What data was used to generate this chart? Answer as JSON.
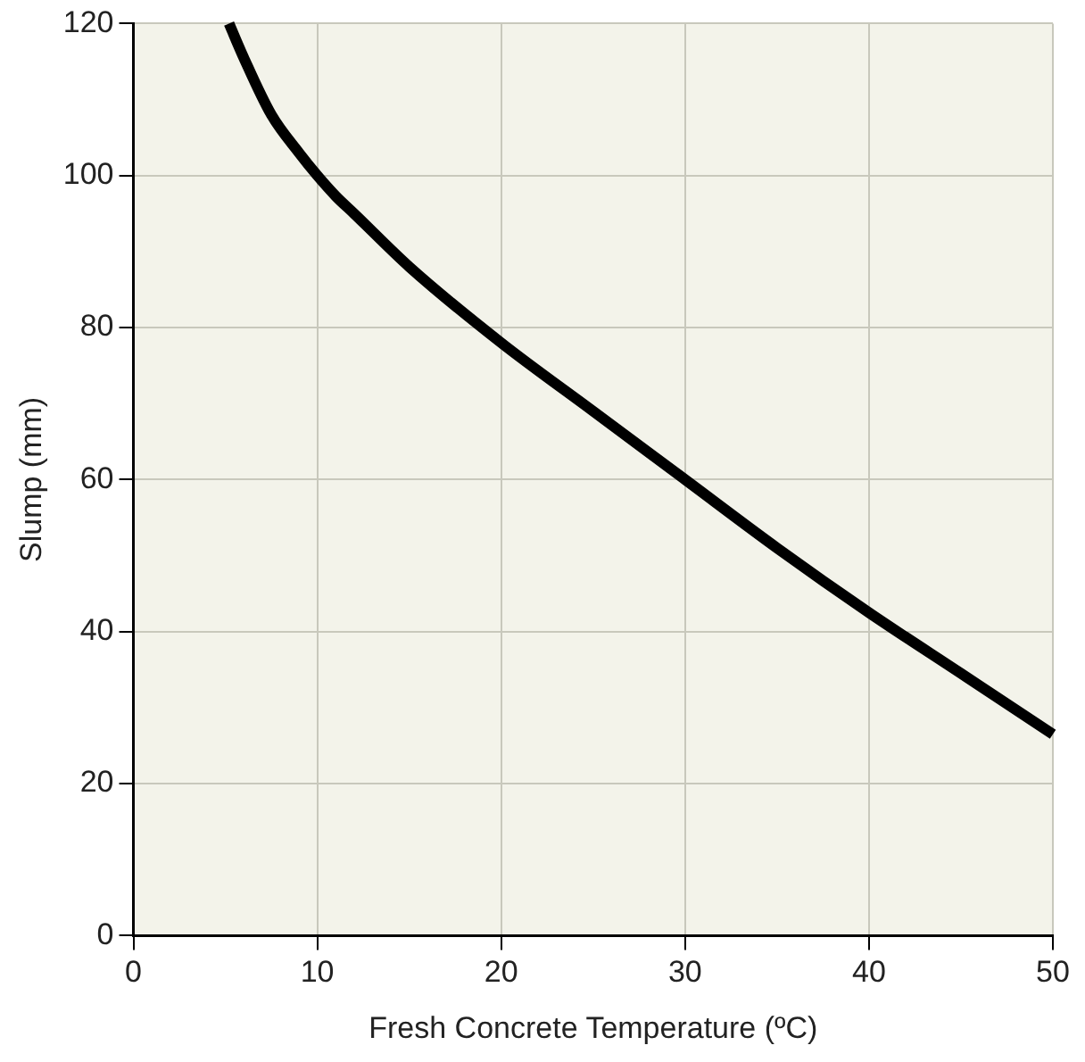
{
  "chart_data": {
    "type": "line",
    "xlabel": "Fresh Concrete Temperature (ºC)",
    "ylabel": "Slump (mm)",
    "series": [
      {
        "color": "#000000",
        "x": [
          5.2,
          6,
          7.5,
          9,
          10,
          11,
          12,
          15,
          20,
          25,
          30,
          35,
          40,
          45,
          50
        ],
        "values": [
          120,
          115.5,
          108,
          103,
          100,
          97.3,
          95,
          88,
          78,
          69,
          60,
          51,
          42.5,
          34.5,
          26.5
        ]
      }
    ],
    "xlim": [
      0,
      50
    ],
    "xticks": [
      0,
      10,
      20,
      30,
      40,
      50
    ],
    "ylim": [
      0,
      120
    ],
    "yticks": [
      0,
      20,
      40,
      60,
      80,
      100,
      120
    ],
    "grid": true,
    "legend": false,
    "marker": "none",
    "line_style": "solid"
  }
}
